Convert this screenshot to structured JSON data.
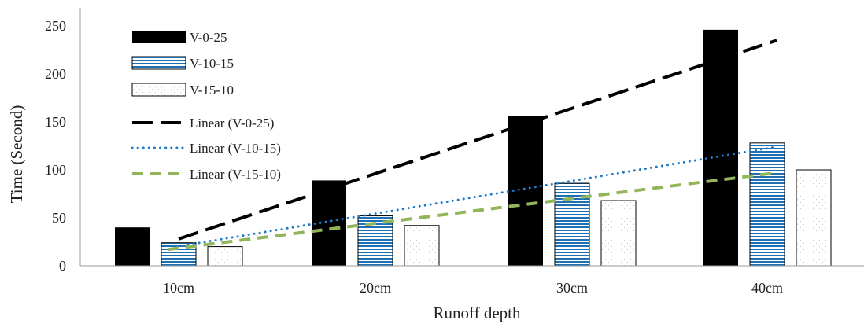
{
  "chart_data": {
    "type": "bar",
    "title": "",
    "xlabel": "Runoff depth",
    "ylabel": "Time (Second)",
    "ylim": [
      0,
      250
    ],
    "yticks": [
      0,
      50,
      100,
      150,
      200,
      250
    ],
    "grid": false,
    "legend_position": "top-left",
    "categories": [
      "10cm",
      "20cm",
      "30cm",
      "40cm"
    ],
    "series": [
      {
        "name": "V-0-25",
        "values": [
          40,
          89,
          156,
          246
        ],
        "color": "#000000",
        "pattern": "solid"
      },
      {
        "name": "V-10-15",
        "values": [
          24,
          52,
          86,
          128
        ],
        "color": "#1f6fb4",
        "pattern": "horizontal-stripes"
      },
      {
        "name": "V-15-10",
        "values": [
          20,
          42,
          68,
          100
        ],
        "color": "#ffffff",
        "pattern": "light-dots"
      }
    ],
    "trendlines": [
      {
        "name": "Linear (V-0-25)",
        "type": "linear",
        "series": "V-0-25",
        "start": 28,
        "end": 235,
        "color": "#000000",
        "dash": "long-dash"
      },
      {
        "name": "Linear (V-10-15)",
        "type": "linear",
        "series": "V-10-15",
        "start": 20,
        "end": 124,
        "color": "#1f78c8",
        "dash": "dotted"
      },
      {
        "name": "Linear (V-15-10)",
        "type": "linear",
        "series": "V-15-10",
        "start": 17,
        "end": 97,
        "color": "#92b55a",
        "dash": "dashed"
      }
    ]
  }
}
